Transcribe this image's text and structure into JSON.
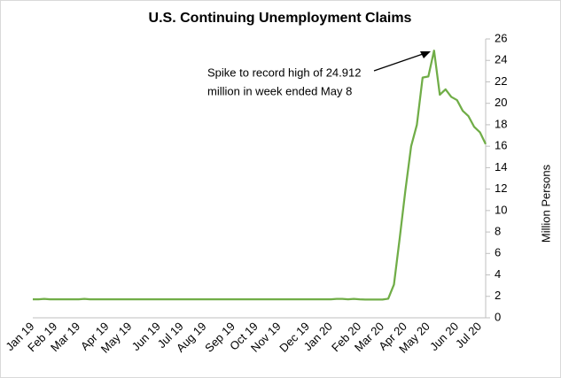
{
  "chart_data": {
    "type": "line",
    "title": "U.S. Continuing Unemployment Claims",
    "y_label": "Million Persons",
    "annotation": [
      "Spike to record high of 24.912",
      "million in week ended May 8"
    ],
    "color": "#70ad47",
    "categories": [
      "Jan 19",
      null,
      null,
      null,
      "Feb 19",
      null,
      null,
      null,
      "Mar 19",
      null,
      null,
      null,
      null,
      "Apr 19",
      null,
      null,
      null,
      "May 19",
      null,
      null,
      null,
      null,
      "Jun 19",
      null,
      null,
      null,
      "Jul 19",
      null,
      null,
      null,
      "Aug 19",
      null,
      null,
      null,
      null,
      "Sep 19",
      null,
      null,
      null,
      "Oct 19",
      null,
      null,
      null,
      "Nov 19",
      null,
      null,
      null,
      null,
      "Dec 19",
      null,
      null,
      null,
      "Jan 20",
      null,
      null,
      null,
      null,
      "Feb 20",
      null,
      null,
      null,
      "Mar 20",
      null,
      null,
      null,
      "Apr 20",
      null,
      null,
      null,
      "May 20",
      null,
      null,
      null,
      null,
      "Jun 20",
      null,
      null,
      null,
      "Jul 20",
      null
    ],
    "values": [
      1.72,
      1.72,
      1.76,
      1.72,
      1.72,
      1.72,
      1.72,
      1.72,
      1.72,
      1.76,
      1.72,
      1.72,
      1.72,
      1.72,
      1.72,
      1.72,
      1.72,
      1.72,
      1.72,
      1.72,
      1.72,
      1.72,
      1.72,
      1.72,
      1.72,
      1.72,
      1.72,
      1.72,
      1.72,
      1.72,
      1.72,
      1.72,
      1.72,
      1.72,
      1.72,
      1.72,
      1.72,
      1.72,
      1.72,
      1.72,
      1.72,
      1.72,
      1.72,
      1.72,
      1.72,
      1.72,
      1.72,
      1.72,
      1.72,
      1.72,
      1.72,
      1.72,
      1.72,
      1.76,
      1.76,
      1.72,
      1.76,
      1.72,
      1.7,
      1.7,
      1.7,
      1.7,
      1.78,
      3.1,
      7.4,
      11.9,
      16.0,
      18.0,
      22.4,
      22.5,
      24.912,
      20.8,
      21.3,
      20.6,
      20.3,
      19.3,
      18.8,
      17.8,
      17.3,
      16.2
    ],
    "ylim": [
      0,
      26
    ],
    "yticks": [
      0,
      2,
      4,
      6,
      8,
      10,
      12,
      14,
      16,
      18,
      20,
      22,
      24,
      26
    ],
    "grid": false
  }
}
